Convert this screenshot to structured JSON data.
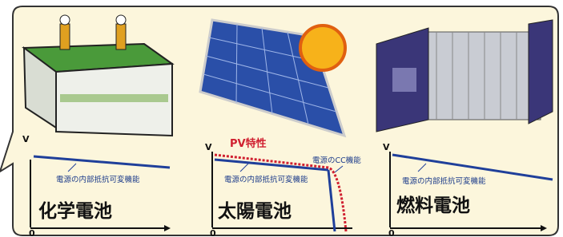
{
  "panels": [
    {
      "title": "化学電池",
      "axis_y": "V",
      "origin": "0",
      "curve_label": "電源の内部抵抗可変機能"
    },
    {
      "title": "太陽電池",
      "axis_y": "V",
      "origin": "0",
      "curve_label": "電源の内部抵抗可変機能",
      "pv_label": "PV特性",
      "cc_label": "電源のCC機能"
    },
    {
      "title": "燃料電池",
      "axis_y": "V",
      "origin": "0",
      "curve_label": "電源の内部抵抗可変機能"
    }
  ]
}
